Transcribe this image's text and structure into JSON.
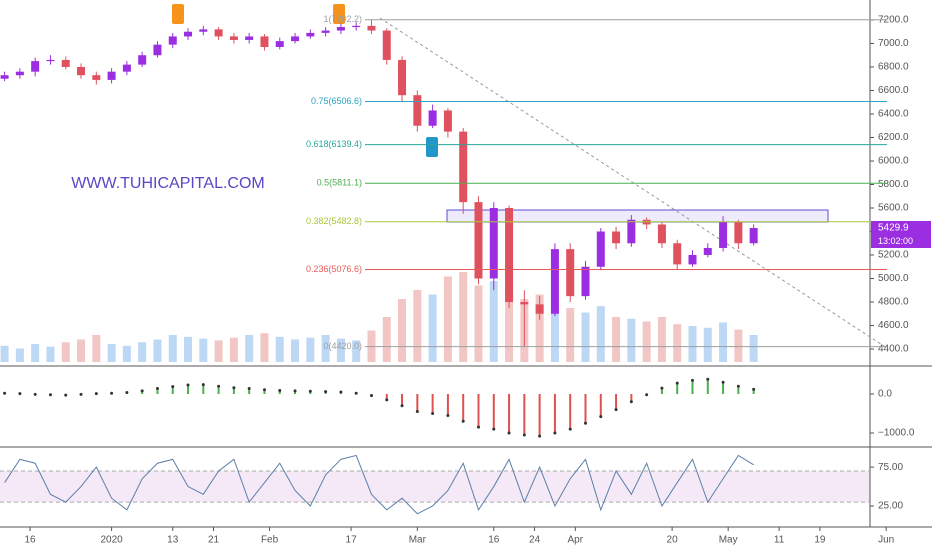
{
  "chart_data": [
    {
      "type": "candlestick",
      "watermark": "WWW.TUHICAPITAL.COM",
      "x": [
        10,
        13,
        16,
        19,
        22,
        25,
        28,
        31,
        34,
        37,
        40,
        43,
        46,
        49,
        52,
        55,
        58,
        61,
        64,
        67,
        70,
        73,
        76,
        79,
        82,
        85,
        88,
        91,
        94,
        97,
        100,
        103,
        106,
        109,
        112,
        115,
        118,
        121,
        124,
        127,
        130,
        133,
        136,
        139,
        142,
        145,
        148,
        151,
        154,
        157
      ],
      "open": [
        6700,
        6730,
        6760,
        6850,
        6860,
        6800,
        6730,
        6690,
        6760,
        6820,
        6900,
        6990,
        7060,
        7100,
        7120,
        7060,
        7030,
        7060,
        6970,
        7020,
        7060,
        7090,
        7110,
        7140,
        7150,
        7110,
        6860,
        6560,
        6300,
        6430,
        6250,
        5650,
        5000,
        5600,
        4800,
        4780,
        4700,
        5250,
        4850,
        5100,
        5400,
        5300,
        5500,
        5460,
        5300,
        5120,
        5200,
        5260,
        5480,
        5300
      ],
      "high": [
        6760,
        6790,
        6880,
        6900,
        6890,
        6830,
        6760,
        6790,
        6850,
        6930,
        7020,
        7090,
        7130,
        7150,
        7140,
        7090,
        7090,
        7080,
        7050,
        7090,
        7120,
        7140,
        7170,
        7180,
        7202.2,
        7130,
        6890,
        6600,
        6480,
        6450,
        6280,
        5700,
        5650,
        5620,
        4900,
        4850,
        5300,
        5300,
        5150,
        5430,
        5440,
        5540,
        5520,
        5480,
        5330,
        5240,
        5300,
        5530,
        5500,
        5460
      ],
      "low": [
        6680,
        6700,
        6720,
        6820,
        6780,
        6700,
        6650,
        6660,
        6730,
        6800,
        6880,
        6960,
        7030,
        7070,
        7030,
        7000,
        7000,
        6940,
        6950,
        7000,
        7040,
        7060,
        7080,
        7110,
        7080,
        6820,
        6500,
        6250,
        6280,
        6200,
        5550,
        4950,
        4900,
        4750,
        4420,
        4650,
        4680,
        4800,
        4820,
        5070,
        5250,
        5270,
        5420,
        5260,
        5080,
        5100,
        5180,
        5230,
        5250,
        5280
      ],
      "close": [
        6730,
        6760,
        6850,
        6860,
        6800,
        6730,
        6690,
        6760,
        6820,
        6900,
        6990,
        7060,
        7100,
        7120,
        7060,
        7030,
        7060,
        6970,
        7020,
        7060,
        7090,
        7110,
        7140,
        7150,
        7110,
        6860,
        6560,
        6300,
        6430,
        6250,
        5650,
        5000,
        5600,
        4800,
        4780,
        4700,
        5250,
        4850,
        5100,
        5400,
        5300,
        5500,
        5460,
        5300,
        5120,
        5200,
        5260,
        5480,
        5300,
        5429.9
      ],
      "volume": [
        18,
        15,
        20,
        17,
        22,
        25,
        30,
        20,
        18,
        22,
        25,
        30,
        28,
        26,
        24,
        27,
        30,
        32,
        28,
        25,
        27,
        30,
        26,
        24,
        35,
        50,
        70,
        80,
        75,
        95,
        100,
        85,
        90,
        80,
        70,
        75,
        65,
        60,
        55,
        62,
        50,
        48,
        45,
        50,
        42,
        40,
        38,
        44,
        36,
        30
      ],
      "up_color": "#9b2ee0",
      "down_color": "#e0515f",
      "up_volume_color": "#bcd8f5",
      "down_volume_color": "#f3c6c6",
      "xlim": [
        9.1,
        192
      ],
      "xticks": [
        {
          "value": 15,
          "label": "16"
        },
        {
          "value": 31,
          "label": "2020"
        },
        {
          "value": 43,
          "label": "13"
        },
        {
          "value": 51,
          "label": "21"
        },
        {
          "value": 62,
          "label": "Feb"
        },
        {
          "value": 78,
          "label": "17"
        },
        {
          "value": 91,
          "label": "Mar"
        },
        {
          "value": 106,
          "label": "16"
        },
        {
          "value": 114,
          "label": "24"
        },
        {
          "value": 122,
          "label": "Apr"
        },
        {
          "value": 141,
          "label": "20"
        },
        {
          "value": 152,
          "label": "May"
        },
        {
          "value": 162,
          "label": "11"
        },
        {
          "value": 170,
          "label": "19"
        },
        {
          "value": 183,
          "label": "Jun"
        }
      ],
      "ylim": [
        4264,
        7370
      ],
      "yticks": [
        {
          "value": 4400,
          "label": "4400.0"
        },
        {
          "value": 4600,
          "label": "4600.0"
        },
        {
          "value": 4800,
          "label": "4800.0"
        },
        {
          "value": 5000,
          "label": "5000.0"
        },
        {
          "value": 5200,
          "label": "5200.0"
        },
        {
          "value": 5400,
          "label": "5400.0"
        },
        {
          "value": 5600,
          "label": "5600.0"
        },
        {
          "value": 5800,
          "label": "5800.0"
        },
        {
          "value": 6000,
          "label": "6000.0"
        },
        {
          "value": 6200,
          "label": "6200.0"
        },
        {
          "value": 6400,
          "label": "6400.0"
        },
        {
          "value": 6600,
          "label": "6600.0"
        },
        {
          "value": 6800,
          "label": "6800.0"
        },
        {
          "value": 7000,
          "label": "7000.0"
        },
        {
          "value": 7200,
          "label": "7200.0"
        }
      ],
      "fib_levels": [
        {
          "value": 7202.2,
          "label": "1(7202.2)",
          "color": "#9e9e9e"
        },
        {
          "value": 6506.6,
          "label": "0.75(6506.6)",
          "color": "#2ba6c4"
        },
        {
          "value": 6139.4,
          "label": "0.618(6139.4)",
          "color": "#26a69a"
        },
        {
          "value": 5811.1,
          "label": "0.5(5811.1)",
          "color": "#4caf50"
        },
        {
          "value": 5482.8,
          "label": "0.382(5482.8)",
          "color": "#a5c93b"
        },
        {
          "value": 5076.6,
          "label": "0.236(5076.6)",
          "color": "#e85a5a"
        },
        {
          "value": 4420.0,
          "label": "0(4420.0)",
          "color": "#9e9e9e"
        }
      ],
      "price_label": "5429.9",
      "countdown": "13:02:00"
    },
    {
      "type": "bar",
      "values": [
        20,
        10,
        -10,
        -20,
        -30,
        -10,
        10,
        20,
        40,
        80,
        140,
        190,
        230,
        240,
        200,
        160,
        140,
        110,
        90,
        80,
        70,
        60,
        50,
        20,
        -40,
        -150,
        -300,
        -450,
        -500,
        -550,
        -700,
        -850,
        -900,
        -1000,
        -1050,
        -1080,
        -1000,
        -900,
        -750,
        -580,
        -400,
        -200,
        -20,
        150,
        280,
        350,
        380,
        300,
        200,
        120
      ],
      "positive_color": "#4caf50",
      "negative_color": "#e05050",
      "ylim": [
        -1359,
        667
      ],
      "yticks": [
        {
          "value": 0,
          "label": "0.0"
        },
        {
          "value": -1000,
          "label": "−1000.0"
        }
      ]
    },
    {
      "type": "line",
      "values": [
        55,
        85,
        80,
        40,
        30,
        50,
        75,
        35,
        20,
        60,
        80,
        85,
        50,
        40,
        70,
        85,
        30,
        55,
        80,
        45,
        25,
        65,
        85,
        90,
        40,
        20,
        35,
        15,
        25,
        45,
        80,
        20,
        50,
        85,
        30,
        75,
        25,
        60,
        85,
        20,
        70,
        40,
        80,
        25,
        55,
        85,
        30,
        60,
        90,
        78
      ],
      "color": "#5b7fa8",
      "band": [
        30,
        70
      ],
      "ylim": [
        7,
        97
      ],
      "yticks": [
        {
          "value": 75,
          "label": "75.00"
        },
        {
          "value": 25,
          "label": "25.00"
        }
      ]
    }
  ]
}
